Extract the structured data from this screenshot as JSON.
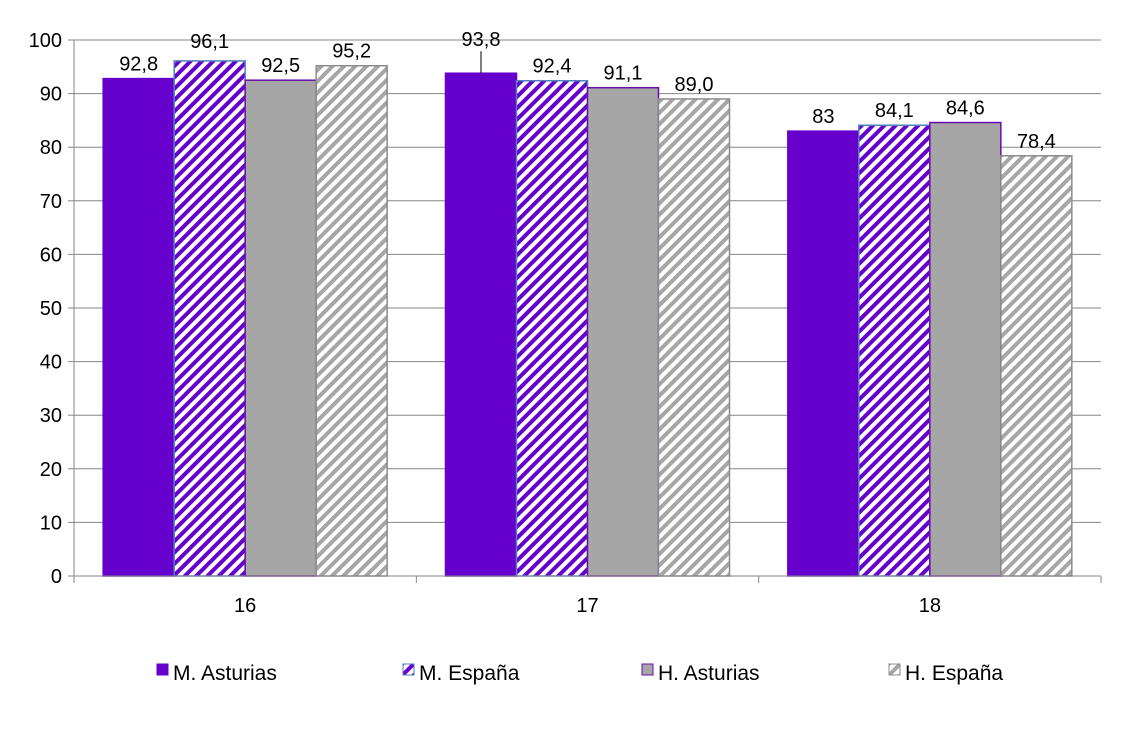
{
  "chart_data": {
    "type": "bar",
    "categories": [
      "16",
      "17",
      "18"
    ],
    "series": [
      {
        "name": "M. Asturias",
        "values": [
          92.8,
          93.8,
          83
        ],
        "labels": [
          "92,8",
          "93,8",
          "83"
        ],
        "color": "#6600cc",
        "pattern": "solid"
      },
      {
        "name": "M. España",
        "values": [
          96.1,
          92.4,
          84.1
        ],
        "labels": [
          "96,1",
          "92,4",
          "84,1"
        ],
        "color": "#6600cc",
        "pattern": "diagonal-stripes"
      },
      {
        "name": "H. Asturias",
        "values": [
          92.5,
          91.1,
          84.6
        ],
        "labels": [
          "92,5",
          "91,1",
          "84,6"
        ],
        "color": "#a6a6a6",
        "pattern": "solid"
      },
      {
        "name": "H. España",
        "values": [
          95.2,
          89.0,
          78.4
        ],
        "labels": [
          "95,2",
          "89,0",
          "78,4"
        ],
        "color": "#a6a6a6",
        "pattern": "diagonal-stripes"
      }
    ],
    "title": "",
    "xlabel": "",
    "ylabel": "",
    "ylim": [
      0,
      100
    ],
    "yticks": [
      "0",
      "10",
      "20",
      "30",
      "40",
      "50",
      "60",
      "70",
      "80",
      "90",
      "100"
    ],
    "grid": true,
    "legend_position": "bottom"
  }
}
